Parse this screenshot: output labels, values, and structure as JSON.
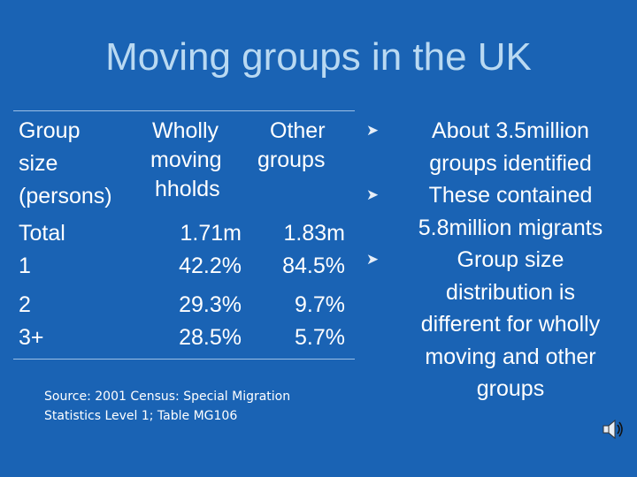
{
  "title": "Moving groups in the UK",
  "table": {
    "headers": [
      [
        "Group",
        "size",
        "(persons)"
      ],
      [
        "Wholly",
        "moving",
        "hholds"
      ],
      [
        "Other",
        "groups"
      ]
    ],
    "rows": [
      [
        "Total",
        "1.71m",
        "1.83m"
      ],
      [
        "1",
        "42.2%",
        "84.5%"
      ],
      [
        "2",
        "29.3%",
        "9.7%"
      ],
      [
        "3+",
        "28.5%",
        "5.7%"
      ]
    ]
  },
  "source": [
    "Source: 2001 Census: Special Migration",
    "Statistics Level 1; Table MG106"
  ],
  "bullets": [
    {
      "icon": "arrowhead-bullet-icon",
      "lines": [
        "About 3.5million",
        "groups identified"
      ]
    },
    {
      "icon": "arrowhead-bullet-icon",
      "lines": [
        "These contained",
        "5.8million migrants"
      ]
    },
    {
      "icon": "arrowhead-bullet-icon",
      "lines": [
        "Group size",
        "distribution is",
        "different for wholly",
        "moving and other",
        "groups"
      ]
    }
  ],
  "colors": {
    "background": "#1a63b4",
    "title": "#b9d9f2",
    "text": "#ffffff"
  }
}
